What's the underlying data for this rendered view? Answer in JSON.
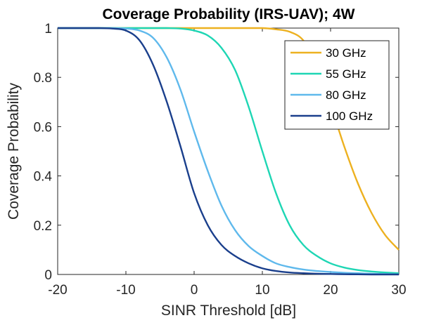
{
  "chart_data": {
    "type": "line",
    "title": "Coverage Probability (IRS-UAV); 4W",
    "xlabel": "SINR Threshold [dB]",
    "ylabel": "Coverage Probability",
    "xlim": [
      -20,
      30
    ],
    "ylim": [
      0,
      1
    ],
    "xticks": [
      -20,
      -10,
      0,
      10,
      20,
      30
    ],
    "xtick_labels": [
      "-20",
      "-10",
      "0",
      "10",
      "20",
      "30"
    ],
    "yticks": [
      0,
      0.2,
      0.4,
      0.6,
      0.8,
      1
    ],
    "ytick_labels": [
      "0",
      "0.2",
      "0.4",
      "0.6",
      "0.8",
      "1"
    ],
    "grid": false,
    "legend_position": "top-right",
    "x": [
      -20,
      -18,
      -16,
      -14,
      -12,
      -10,
      -8,
      -6,
      -4,
      -2,
      0,
      2,
      4,
      6,
      8,
      10,
      12,
      14,
      16,
      18,
      20,
      22,
      24,
      26,
      28,
      30
    ],
    "series": [
      {
        "name": "30 GHz",
        "color": "#EDB120",
        "values": [
          1,
          1,
          1,
          1,
          1,
          1,
          1,
          1,
          1,
          1,
          1,
          1,
          1,
          1,
          1,
          1,
          0.995,
          0.985,
          0.95,
          0.85,
          0.69,
          0.52,
          0.37,
          0.25,
          0.16,
          0.1
        ]
      },
      {
        "name": "55 GHz",
        "color": "#1ED6B4",
        "values": [
          1,
          1,
          1,
          1,
          1,
          1,
          1,
          1,
          1,
          0.998,
          0.99,
          0.97,
          0.92,
          0.83,
          0.68,
          0.5,
          0.33,
          0.2,
          0.12,
          0.075,
          0.045,
          0.028,
          0.018,
          0.012,
          0.008,
          0.005
        ]
      },
      {
        "name": "80 GHz",
        "color": "#5FB9EC",
        "values": [
          1,
          1,
          1,
          1,
          1,
          0.998,
          0.99,
          0.96,
          0.88,
          0.75,
          0.58,
          0.42,
          0.28,
          0.18,
          0.115,
          0.075,
          0.045,
          0.03,
          0.02,
          0.014,
          0.01,
          0.007,
          0.005,
          0.003,
          0.002,
          0.001
        ]
      },
      {
        "name": "100 GHz",
        "color": "#1A3F8C",
        "values": [
          1,
          1,
          1,
          1,
          0.998,
          0.99,
          0.95,
          0.85,
          0.7,
          0.52,
          0.33,
          0.2,
          0.12,
          0.075,
          0.045,
          0.025,
          0.014,
          0.008,
          0.005,
          0.003,
          0.002,
          0.001,
          0.0005,
          0,
          0,
          0
        ]
      }
    ]
  }
}
